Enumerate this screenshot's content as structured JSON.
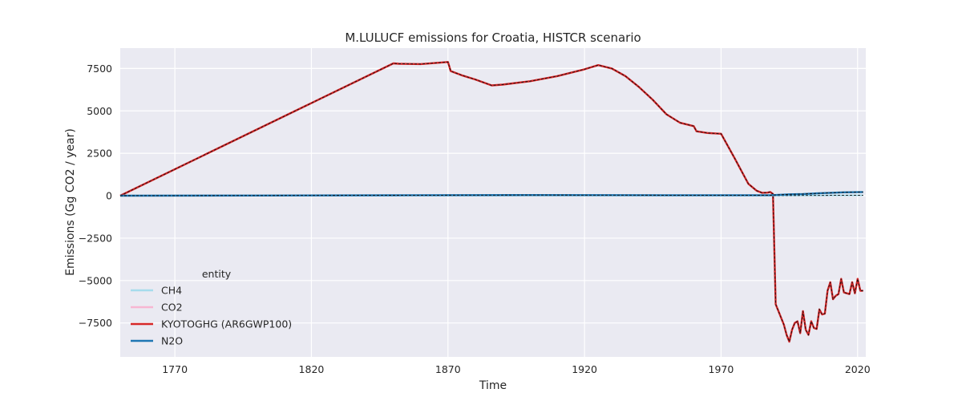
{
  "chart_data": {
    "type": "line",
    "title": "M.LULUCF emissions for Croatia, HISTCR scenario",
    "xlabel": "Time",
    "ylabel": "Emissions (Gg CO2 / year)",
    "xlim": [
      1750,
      2023
    ],
    "ylim": [
      -9500,
      8700
    ],
    "xticks": [
      1770,
      1820,
      1870,
      1920,
      1970,
      2020
    ],
    "xtick_labels": [
      "1770",
      "1820",
      "1870",
      "1920",
      "1970",
      "2020"
    ],
    "yticks": [
      7500,
      5000,
      2500,
      0,
      -2500,
      -5000,
      -7500
    ],
    "ytick_labels": [
      "7500",
      "5000",
      "2500",
      "0",
      "−2500",
      "−5000",
      "−7500"
    ],
    "grid": true,
    "background": "#eaeaf2",
    "legend": {
      "title": "entity",
      "placement": "lower-left",
      "entries": [
        "CH4",
        "CO2",
        "KYOTOGHG (AR6GWP100)",
        "N2O"
      ]
    },
    "series": [
      {
        "name": "CH4",
        "color": "#a6dcec",
        "x": [
          1750,
          1800,
          1850,
          1900,
          1950,
          1988,
          1995,
          2000,
          2005,
          2010,
          2015,
          2022
        ],
        "y": [
          0,
          5,
          10,
          15,
          10,
          10,
          12,
          15,
          18,
          20,
          22,
          25
        ]
      },
      {
        "name": "CO2",
        "color": "#f7b6d2",
        "x": [
          1750,
          1850,
          1852,
          1860,
          1870,
          1871,
          1875,
          1880,
          1886,
          1890,
          1900,
          1910,
          1920,
          1925,
          1930,
          1935,
          1940,
          1945,
          1950,
          1955,
          1960,
          1961,
          1965,
          1970,
          1975,
          1980,
          1983,
          1985,
          1987,
          1988,
          1989,
          1990,
          1993,
          1994,
          1995,
          1996,
          1997,
          1998,
          1999,
          2000,
          2001,
          2002,
          2003,
          2004,
          2005,
          2006,
          2007,
          2008,
          2009,
          2010,
          2011,
          2012,
          2013,
          2014,
          2015,
          2016,
          2017,
          2018,
          2019,
          2020,
          2021,
          2022
        ],
        "y": [
          0,
          7800,
          7780,
          7760,
          7880,
          7350,
          7100,
          6850,
          6500,
          6550,
          6750,
          7050,
          7450,
          7700,
          7500,
          7050,
          6400,
          5650,
          4800,
          4300,
          4100,
          3800,
          3700,
          3650,
          2200,
          700,
          300,
          170,
          180,
          220,
          100,
          -6400,
          -7600,
          -8200,
          -8600,
          -7900,
          -7500,
          -7400,
          -8100,
          -6800,
          -7900,
          -8200,
          -7400,
          -7800,
          -7850,
          -6700,
          -7000,
          -6950,
          -5600,
          -5100,
          -6100,
          -5900,
          -5800,
          -4900,
          -5700,
          -5750,
          -5800,
          -5100,
          -5750,
          -4900,
          -5600,
          -5600
        ]
      },
      {
        "name": "KYOTOGHG (AR6GWP100)",
        "color": "#d62728",
        "x": [
          1750,
          1850,
          1852,
          1860,
          1870,
          1871,
          1875,
          1880,
          1886,
          1890,
          1900,
          1910,
          1920,
          1925,
          1930,
          1935,
          1940,
          1945,
          1950,
          1955,
          1960,
          1961,
          1965,
          1970,
          1975,
          1980,
          1983,
          1985,
          1987,
          1988,
          1989,
          1990,
          1993,
          1994,
          1995,
          1996,
          1997,
          1998,
          1999,
          2000,
          2001,
          2002,
          2003,
          2004,
          2005,
          2006,
          2007,
          2008,
          2009,
          2010,
          2011,
          2012,
          2013,
          2014,
          2015,
          2016,
          2017,
          2018,
          2019,
          2020,
          2021,
          2022
        ],
        "y": [
          0,
          7800,
          7780,
          7760,
          7880,
          7350,
          7100,
          6850,
          6500,
          6550,
          6750,
          7050,
          7450,
          7700,
          7500,
          7050,
          6400,
          5650,
          4800,
          4300,
          4100,
          3800,
          3700,
          3650,
          2200,
          700,
          300,
          170,
          180,
          220,
          100,
          -6400,
          -7600,
          -8200,
          -8600,
          -7900,
          -7500,
          -7400,
          -8100,
          -6800,
          -7900,
          -8200,
          -7400,
          -7800,
          -7850,
          -6700,
          -7000,
          -6950,
          -5600,
          -5100,
          -6100,
          -5900,
          -5800,
          -4900,
          -5700,
          -5750,
          -5800,
          -5100,
          -5750,
          -4900,
          -5600,
          -5600
        ]
      },
      {
        "name": "N2O",
        "color": "#1f77b4",
        "x": [
          1750,
          1800,
          1850,
          1900,
          1950,
          1988,
          1995,
          2000,
          2005,
          2010,
          2015,
          2020,
          2022
        ],
        "y": [
          0,
          10,
          25,
          40,
          30,
          30,
          80,
          100,
          140,
          170,
          200,
          210,
          215
        ]
      }
    ]
  }
}
